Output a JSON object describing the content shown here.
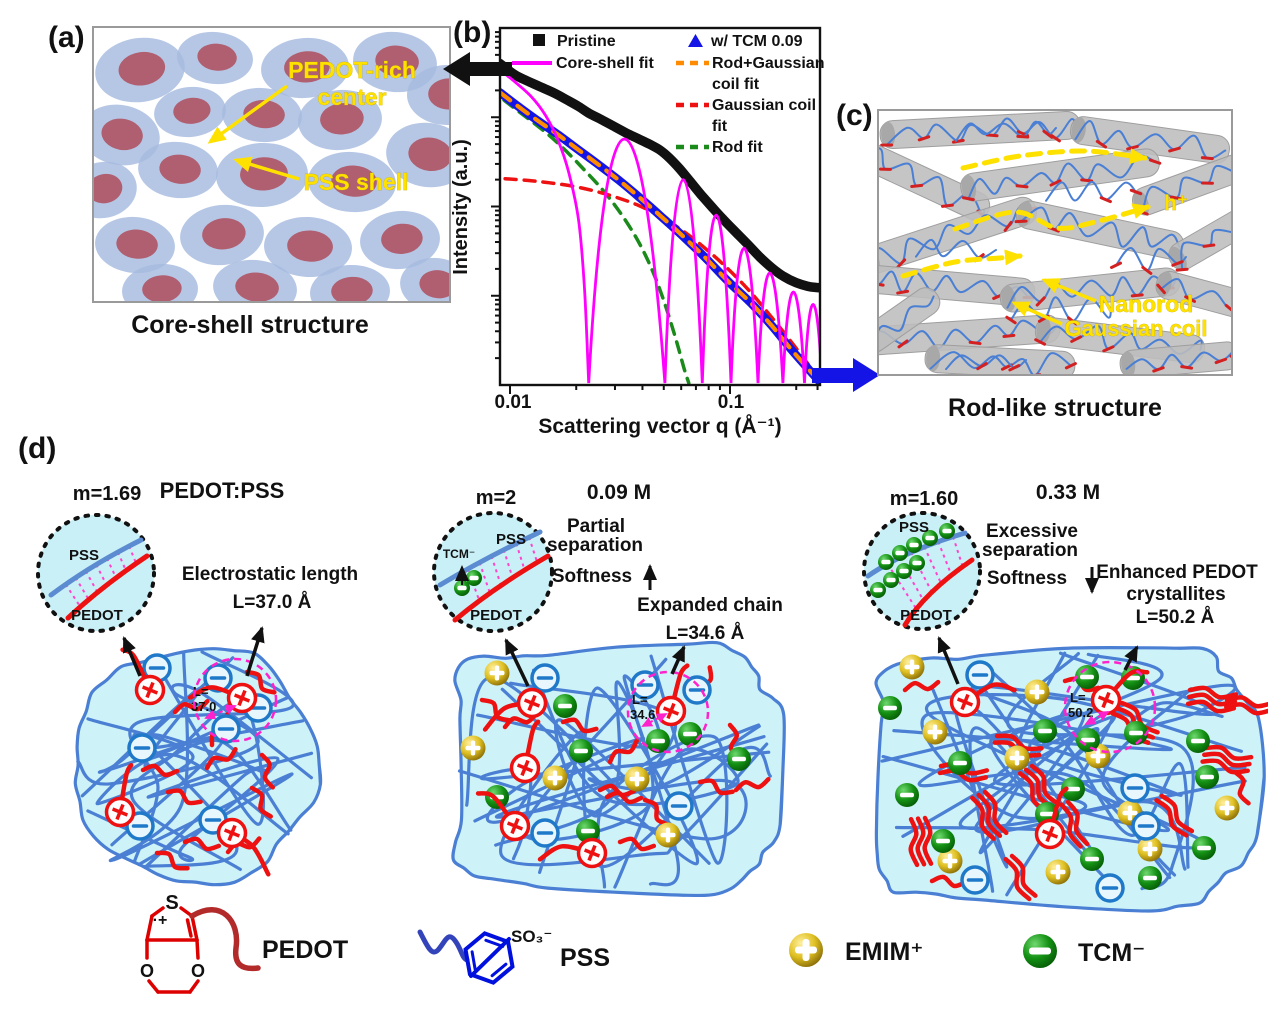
{
  "figure": {
    "panel_a": {
      "label": "(a)",
      "annotation_center_line1": "PEDOT-rich",
      "annotation_center_line2": "center",
      "annotation_shell": "PSS shell",
      "caption": "Core-shell structure"
    },
    "panel_b": {
      "label": "(b)",
      "legend": {
        "pristine": "Pristine",
        "tcm": "w/ TCM 0.09",
        "core_shell": "Core-shell fit",
        "rod_gauss_1": "Rod+Gaussian",
        "rod_gauss_2": "coil fit",
        "gauss_1": "Gaussian coil",
        "gauss_2": "fit",
        "rod": "Rod fit"
      },
      "ylabel": "Intensity (a.u.)",
      "xlabel": "Scattering vector q (Å⁻¹)",
      "xtick_1": "0.01",
      "xtick_2": "0.1"
    },
    "panel_c": {
      "label": "(c)",
      "hole_label": "h⁺",
      "nanorod_label": "Nanorod",
      "coil_label": "Gaussian coil",
      "caption": "Rod-like structure"
    },
    "panel_d": {
      "label": "(d)",
      "col1": {
        "m": "m=1.69",
        "title": "PEDOT:PSS",
        "pss": "PSS",
        "pedot": "PEDOT",
        "note_1": "Electrostatic length",
        "note_2": "L=37.0 Å",
        "len_1": "L=",
        "len_2": "37.0"
      },
      "col2": {
        "m": "m=2",
        "title": "0.09 M",
        "pss": "PSS",
        "pedot": "PEDOT",
        "tcm": "TCM⁻",
        "sep_1": "Partial",
        "sep_2": "separation",
        "softness": "Softness",
        "note_1": "Expanded chain",
        "note_2": "L=34.6 Å",
        "len_1": "L=",
        "len_2": "34.6"
      },
      "col3": {
        "m": "m=1.60",
        "title": "0.33 M",
        "pss": "PSS",
        "pedot": "PEDOT",
        "sep_1": "Excessive",
        "sep_2": "separation",
        "softness": "Softness",
        "note_1": "Enhanced PEDOT",
        "note_2": "crystallites",
        "note_3": "L=50.2 Å",
        "len_1": "L=",
        "len_2": "50.2"
      },
      "legend": {
        "pedot": "PEDOT",
        "pss": "PSS",
        "so3": "SO₃⁻",
        "emim": "EMIM⁺",
        "tcm": "TCM⁻",
        "s": "S",
        "plus": "·+",
        "o1": "O",
        "o2": "O"
      }
    }
  },
  "colors": {
    "pristine": "#111111",
    "tcm_blue": "#1414e6",
    "fit_magenta": "#ff00ff",
    "fit_orange": "#ff8c00",
    "fit_red": "#ee1111",
    "fit_green": "#1a8a1a",
    "yellow": "#ffe100",
    "blob_cyan": "#cdf3f8",
    "chain_blue": "#4a7fd4",
    "shell_blue": "#a6bbdf",
    "core_rose": "#b05f70",
    "emim_gold": "#c9a227",
    "tcm_green": "#118a11",
    "rod_gray": "#bdbdbd",
    "annotation_magenta": "#ff22cc"
  },
  "chart_data": {
    "type": "line",
    "title": "",
    "xlabel": "Scattering vector q (Å⁻¹)",
    "ylabel": "Intensity (a.u.)",
    "x_scale": "log",
    "y_scale": "log",
    "x_range": [
      0.008,
      0.26
    ],
    "x_ticks": [
      0.01,
      0.1
    ],
    "grid": false,
    "legend_position": "top-inside",
    "intensity_units": "arbitrary units, relative values estimated from plot",
    "series": [
      {
        "name": "Pristine",
        "marker": "square",
        "style": "solid-thick",
        "color": "#111111",
        "points": [
          [
            0.009,
            4000
          ],
          [
            0.0105,
            3000
          ],
          [
            0.012,
            2550
          ],
          [
            0.014,
            2150
          ],
          [
            0.016,
            1850
          ],
          [
            0.018,
            1580
          ],
          [
            0.0205,
            1320
          ],
          [
            0.023,
            1100
          ],
          [
            0.026,
            940
          ],
          [
            0.03,
            780
          ],
          [
            0.034,
            660
          ],
          [
            0.038,
            580
          ],
          [
            0.043,
            500
          ],
          [
            0.048,
            430
          ],
          [
            0.053,
            350
          ],
          [
            0.059,
            265
          ],
          [
            0.066,
            190
          ],
          [
            0.074,
            135
          ],
          [
            0.083,
            98
          ],
          [
            0.093,
            72
          ],
          [
            0.105,
            53
          ],
          [
            0.12,
            38
          ],
          [
            0.137,
            27
          ],
          [
            0.155,
            20.5
          ],
          [
            0.175,
            16.5
          ],
          [
            0.2,
            14
          ],
          [
            0.225,
            12.8
          ],
          [
            0.245,
            12.4
          ],
          [
            0.258,
            12.3
          ]
        ]
      },
      {
        "name": "w/ TCM 0.09",
        "marker": "triangle",
        "style": "solid-thick",
        "color": "#1414e6",
        "points": [
          [
            0.009,
            1900
          ],
          [
            0.011,
            1300
          ],
          [
            0.0135,
            900
          ],
          [
            0.0165,
            640
          ],
          [
            0.02,
            450
          ],
          [
            0.025,
            300
          ],
          [
            0.031,
            200
          ],
          [
            0.039,
            125
          ],
          [
            0.049,
            76
          ],
          [
            0.062,
            45
          ],
          [
            0.078,
            26
          ],
          [
            0.098,
            14.5
          ],
          [
            0.125,
            8.2
          ],
          [
            0.155,
            4.6
          ],
          [
            0.19,
            2.5
          ],
          [
            0.225,
            1.55
          ],
          [
            0.255,
            1.1
          ]
        ]
      },
      {
        "name": "Rod+Gaussian coil fit",
        "style": "dashed",
        "color": "#ff8c00",
        "points": [
          [
            0.009,
            1900
          ],
          [
            0.011,
            1300
          ],
          [
            0.0135,
            900
          ],
          [
            0.0165,
            640
          ],
          [
            0.02,
            450
          ],
          [
            0.025,
            300
          ],
          [
            0.031,
            200
          ],
          [
            0.039,
            125
          ],
          [
            0.049,
            76
          ],
          [
            0.062,
            45
          ],
          [
            0.078,
            26
          ],
          [
            0.098,
            14.5
          ],
          [
            0.125,
            8.2
          ],
          [
            0.155,
            4.6
          ],
          [
            0.19,
            2.5
          ],
          [
            0.225,
            1.55
          ],
          [
            0.255,
            1.1
          ]
        ]
      },
      {
        "name": "Gaussian coil fit",
        "style": "dashed",
        "color": "#ee1111",
        "points": [
          [
            0.0095,
            205
          ],
          [
            0.012,
            196
          ],
          [
            0.015,
            185
          ],
          [
            0.019,
            170
          ],
          [
            0.024,
            150
          ],
          [
            0.03,
            128
          ],
          [
            0.038,
            104
          ],
          [
            0.048,
            78
          ],
          [
            0.06,
            55
          ],
          [
            0.075,
            36
          ],
          [
            0.095,
            21.5
          ],
          [
            0.12,
            12
          ],
          [
            0.15,
            6.3
          ],
          [
            0.185,
            3.3
          ],
          [
            0.225,
            1.75
          ],
          [
            0.255,
            1.1
          ]
        ]
      },
      {
        "name": "Rod fit",
        "style": "dashed",
        "color": "#1a8a1a",
        "points": [
          [
            0.0094,
            1550
          ],
          [
            0.011,
            1150
          ],
          [
            0.013,
            840
          ],
          [
            0.0155,
            590
          ],
          [
            0.0185,
            390
          ],
          [
            0.022,
            250
          ],
          [
            0.026,
            160
          ],
          [
            0.03,
            103
          ],
          [
            0.034,
            66
          ],
          [
            0.038,
            42
          ],
          [
            0.042,
            26
          ],
          [
            0.046,
            15.5
          ],
          [
            0.05,
            8.8
          ],
          [
            0.054,
            4.9
          ],
          [
            0.058,
            2.7
          ],
          [
            0.062,
            1.5
          ],
          [
            0.065,
            1.05
          ]
        ]
      },
      {
        "name": "Core-shell fit",
        "style": "solid-oscillating",
        "color": "#ff00ff",
        "lead_points": [
          [
            0.009,
            3400
          ],
          [
            0.0105,
            2500
          ],
          [
            0.0125,
            1700
          ],
          [
            0.0145,
            1050
          ],
          [
            0.0165,
            560
          ],
          [
            0.0185,
            240
          ],
          [
            0.0205,
            70
          ],
          [
            0.0218,
            12
          ],
          [
            0.0228,
            1.05
          ]
        ],
        "minima_q": [
          0.0228,
          0.0506,
          0.0748,
          0.101,
          0.134,
          0.174,
          0.218,
          0.262
        ],
        "fringe_peaks": [
          [
            0.032,
            570
          ],
          [
            0.061,
            200
          ],
          [
            0.086,
            80
          ],
          [
            0.115,
            34
          ],
          [
            0.15,
            18
          ],
          [
            0.193,
            11
          ],
          [
            0.238,
            8
          ]
        ],
        "min_intensity": 1.05
      }
    ]
  }
}
